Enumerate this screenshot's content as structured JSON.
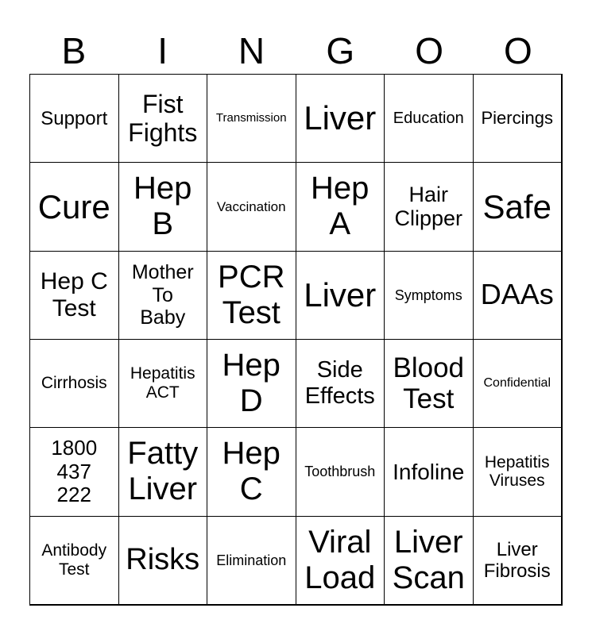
{
  "header": [
    "B",
    "I",
    "N",
    "G",
    "O",
    "O"
  ],
  "cells": [
    [
      [
        "Support"
      ],
      [
        "Fist",
        "Fights"
      ],
      [
        "Transmission"
      ],
      [
        "Liver"
      ],
      [
        "Education"
      ],
      [
        "Piercings"
      ]
    ],
    [
      [
        "Cure"
      ],
      [
        "Hep",
        "B"
      ],
      [
        "Vaccination"
      ],
      [
        "Hep",
        "A"
      ],
      [
        "Hair",
        "Clipper"
      ],
      [
        "Safe"
      ]
    ],
    [
      [
        "Hep C",
        "Test"
      ],
      [
        "Mother",
        "To",
        "Baby"
      ],
      [
        "PCR",
        "Test"
      ],
      [
        "Liver"
      ],
      [
        "Symptoms"
      ],
      [
        "DAAs"
      ]
    ],
    [
      [
        "Cirrhosis"
      ],
      [
        "Hepatitis",
        "ACT"
      ],
      [
        "Hep",
        "D"
      ],
      [
        "Side",
        "Effects"
      ],
      [
        "Blood",
        "Test"
      ],
      [
        "Confidential"
      ]
    ],
    [
      [
        "1800",
        "437",
        "222"
      ],
      [
        "Fatty",
        "Liver"
      ],
      [
        "Hep",
        "C"
      ],
      [
        "Toothbrush"
      ],
      [
        "Infoline"
      ],
      [
        "Hepatitis",
        "Viruses"
      ]
    ],
    [
      [
        "Antibody",
        "Test"
      ],
      [
        "Risks"
      ],
      [
        "Elimination"
      ],
      [
        "Viral",
        "Load"
      ],
      [
        "Liver",
        "Scan"
      ],
      [
        "Liver",
        "Fibrosis"
      ]
    ]
  ]
}
